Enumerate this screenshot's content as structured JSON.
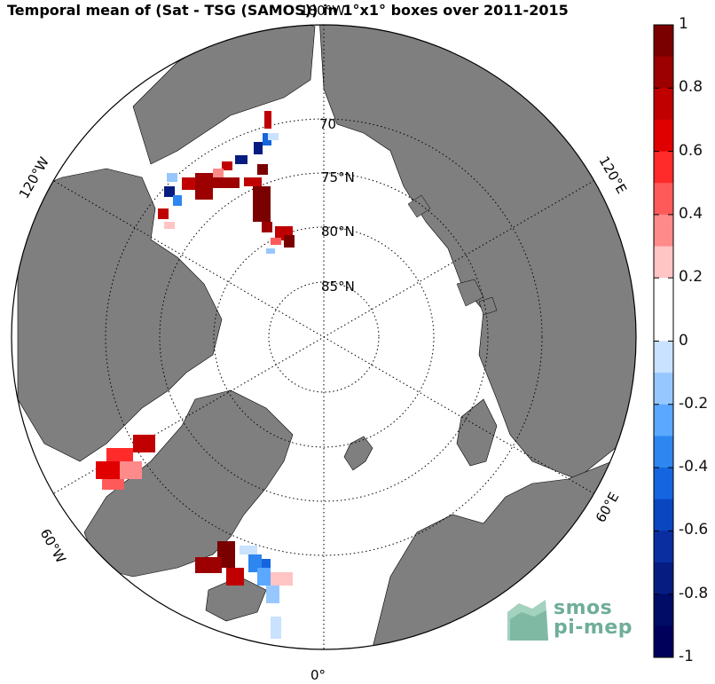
{
  "title": "Temporal mean of (Sat - TSG (SAMOS)) in 1°x1° boxes over 2011-2015",
  "map": {
    "projection": "north polar stereographic",
    "lat_labels": [
      "70",
      "75°N",
      "80°N",
      "85°N"
    ],
    "lon_labels": {
      "top": "180°W",
      "left_upper": "120°W",
      "right_upper": "120°E",
      "left_lower": "60°W",
      "right_lower": "60°E",
      "bottom": "0°"
    },
    "colors": {
      "land": "#7f7f7f",
      "ocean": "#ffffff",
      "grid": "#000000"
    }
  },
  "colorbar": {
    "min": -1,
    "max": 1,
    "tick_labels": [
      "1",
      "0.8",
      "0.6",
      "0.4",
      "0.2",
      "0",
      "-0.2",
      "-0.4",
      "-0.6",
      "-0.8",
      "-1"
    ],
    "colors": [
      "#7a0000",
      "#9c0000",
      "#c00000",
      "#e00000",
      "#ff2a2a",
      "#ff5a5a",
      "#ff8a8a",
      "#ffc4c4",
      "#ffffff",
      "#ffffff",
      "#c8e2ff",
      "#96c8ff",
      "#5aa8ff",
      "#2e86f0",
      "#1565e0",
      "#0a46c0",
      "#0a2ea0",
      "#061c80",
      "#000c66",
      "#00005a"
    ]
  },
  "logo": {
    "line1": "smos",
    "line2": "pi-mep"
  }
}
